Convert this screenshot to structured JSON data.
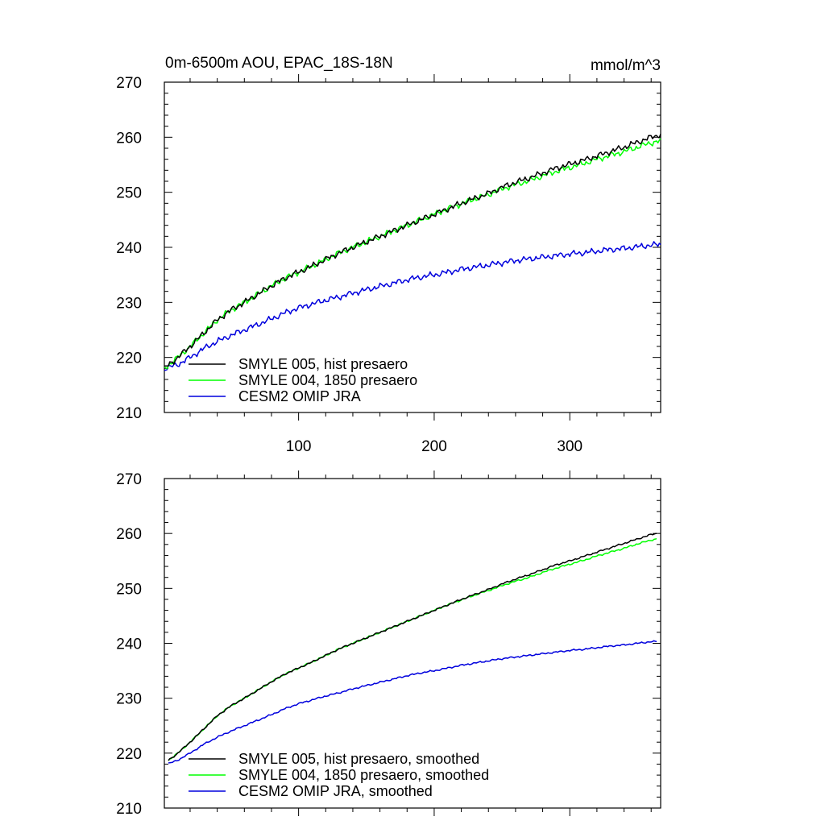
{
  "figure": {
    "title_left": "0m-6500m AOU, EPAC_18S-18N",
    "title_right": "mmol/m^3"
  },
  "chart_data": [
    {
      "type": "line",
      "title": "0m-6500m AOU, EPAC_18S-18N",
      "units": "mmol/m^3",
      "xlim": [
        1,
        367
      ],
      "ylim": [
        210,
        270
      ],
      "x_ticks": [
        100,
        200,
        300
      ],
      "y_ticks": [
        210,
        220,
        230,
        240,
        250,
        260,
        270
      ],
      "x_tick_labels_shown": true,
      "grid": false,
      "legend_position": "bottom-left",
      "series": [
        {
          "name": "SMYLE 005, hist presaero",
          "color": "#000000",
          "x": [
            1,
            10,
            20,
            30,
            40,
            50,
            60,
            70,
            80,
            90,
            100,
            110,
            120,
            130,
            140,
            150,
            160,
            170,
            180,
            190,
            200,
            210,
            220,
            230,
            240,
            250,
            260,
            270,
            280,
            290,
            300,
            310,
            320,
            330,
            340,
            350,
            360,
            367
          ],
          "y": [
            218,
            219.8,
            222.0,
            224.4,
            226.8,
            228.6,
            230.0,
            231.5,
            233.0,
            234.4,
            235.5,
            236.6,
            237.8,
            239.0,
            240.0,
            241.0,
            242.0,
            243.0,
            244.0,
            245.0,
            246.0,
            247.0,
            248.0,
            248.9,
            249.8,
            250.9,
            251.8,
            252.6,
            253.5,
            254.4,
            255.1,
            255.8,
            256.6,
            257.4,
            258.2,
            259.1,
            260.0,
            260.5
          ]
        },
        {
          "name": "SMYLE 004, 1850 presaero",
          "color": "#00ff00",
          "x": [
            1,
            10,
            20,
            30,
            40,
            50,
            60,
            70,
            80,
            90,
            100,
            110,
            120,
            130,
            140,
            150,
            160,
            170,
            180,
            190,
            200,
            210,
            220,
            230,
            240,
            250,
            260,
            270,
            280,
            290,
            300,
            310,
            320,
            330,
            340,
            350,
            360,
            367
          ],
          "y": [
            218,
            219.8,
            222.0,
            224.4,
            226.8,
            228.6,
            230.0,
            231.5,
            233.0,
            234.4,
            235.5,
            236.6,
            237.8,
            239.0,
            240.0,
            241.0,
            242.0,
            243.0,
            244.0,
            245.0,
            246.0,
            247.0,
            247.9,
            248.8,
            249.6,
            250.6,
            251.4,
            252.1,
            253.0,
            253.8,
            254.5,
            255.2,
            256.0,
            256.7,
            257.4,
            258.2,
            259.0,
            259.3
          ]
        },
        {
          "name": "CESM2 OMIP JRA",
          "color": "#0000dd",
          "x": [
            1,
            10,
            20,
            30,
            40,
            50,
            60,
            70,
            80,
            90,
            100,
            110,
            120,
            130,
            140,
            150,
            160,
            170,
            180,
            190,
            200,
            210,
            220,
            230,
            240,
            250,
            260,
            270,
            280,
            290,
            300,
            310,
            320,
            330,
            340,
            350,
            360,
            367
          ],
          "y": [
            218,
            218.6,
            220.0,
            221.6,
            222.9,
            224.0,
            225.0,
            226.0,
            227.0,
            228.1,
            229.0,
            229.7,
            230.4,
            231.0,
            231.7,
            232.3,
            232.9,
            233.5,
            234.1,
            234.6,
            235.0,
            235.5,
            236.0,
            236.4,
            236.8,
            237.2,
            237.6,
            237.9,
            238.2,
            238.5,
            238.8,
            239.0,
            239.3,
            239.6,
            239.8,
            240.1,
            240.4,
            240.5
          ]
        }
      ]
    },
    {
      "type": "line",
      "xlim": [
        1,
        367
      ],
      "ylim": [
        210,
        270
      ],
      "x_ticks": [
        100,
        200,
        300
      ],
      "y_ticks": [
        210,
        220,
        230,
        240,
        250,
        260,
        270
      ],
      "x_tick_labels_shown": false,
      "grid": false,
      "legend_position": "bottom-left",
      "series": [
        {
          "name": "SMYLE 005, hist presaero, smoothed",
          "color": "#000000",
          "x": [
            4,
            10,
            20,
            30,
            40,
            50,
            60,
            70,
            80,
            90,
            100,
            110,
            120,
            130,
            140,
            150,
            160,
            170,
            180,
            190,
            200,
            210,
            220,
            230,
            240,
            250,
            260,
            270,
            280,
            290,
            300,
            310,
            320,
            330,
            340,
            350,
            360,
            364
          ],
          "y": [
            218.7,
            219.8,
            222.0,
            224.4,
            226.8,
            228.6,
            230.0,
            231.5,
            233.0,
            234.4,
            235.5,
            236.6,
            237.8,
            239.0,
            240.0,
            241.0,
            242.0,
            243.0,
            244.0,
            245.0,
            246.0,
            247.0,
            248.0,
            248.9,
            249.8,
            250.8,
            251.7,
            252.5,
            253.4,
            254.3,
            255.0,
            255.8,
            256.6,
            257.4,
            258.2,
            259.0,
            259.8,
            260.0
          ]
        },
        {
          "name": "SMYLE 004, 1850 presaero, smoothed",
          "color": "#00ff00",
          "x": [
            4,
            10,
            20,
            30,
            40,
            50,
            60,
            70,
            80,
            90,
            100,
            110,
            120,
            130,
            140,
            150,
            160,
            170,
            180,
            190,
            200,
            210,
            220,
            230,
            240,
            250,
            260,
            270,
            280,
            290,
            300,
            310,
            320,
            330,
            340,
            350,
            360,
            364
          ],
          "y": [
            218.7,
            219.8,
            222.0,
            224.4,
            226.8,
            228.6,
            230.0,
            231.5,
            233.0,
            234.4,
            235.5,
            236.6,
            237.8,
            239.0,
            240.0,
            241.0,
            242.0,
            243.0,
            244.0,
            245.0,
            246.0,
            247.0,
            247.9,
            248.8,
            249.6,
            250.5,
            251.3,
            252.0,
            252.9,
            253.7,
            254.4,
            255.1,
            255.9,
            256.6,
            257.3,
            258.1,
            258.8,
            259.0
          ]
        },
        {
          "name": "CESM2 OMIP JRA, smoothed",
          "color": "#0000dd",
          "x": [
            4,
            10,
            20,
            30,
            40,
            50,
            60,
            70,
            80,
            90,
            100,
            110,
            120,
            130,
            140,
            150,
            160,
            170,
            180,
            190,
            200,
            210,
            220,
            230,
            240,
            250,
            260,
            270,
            280,
            290,
            300,
            310,
            320,
            330,
            340,
            350,
            360,
            364
          ],
          "y": [
            218.1,
            218.6,
            220.0,
            221.6,
            222.9,
            224.0,
            225.0,
            226.0,
            227.0,
            228.1,
            229.0,
            229.7,
            230.4,
            231.0,
            231.7,
            232.3,
            232.9,
            233.5,
            234.1,
            234.6,
            235.0,
            235.5,
            236.0,
            236.4,
            236.8,
            237.2,
            237.5,
            237.8,
            238.1,
            238.4,
            238.7,
            238.9,
            239.2,
            239.5,
            239.7,
            240.0,
            240.3,
            240.3
          ]
        }
      ]
    }
  ]
}
